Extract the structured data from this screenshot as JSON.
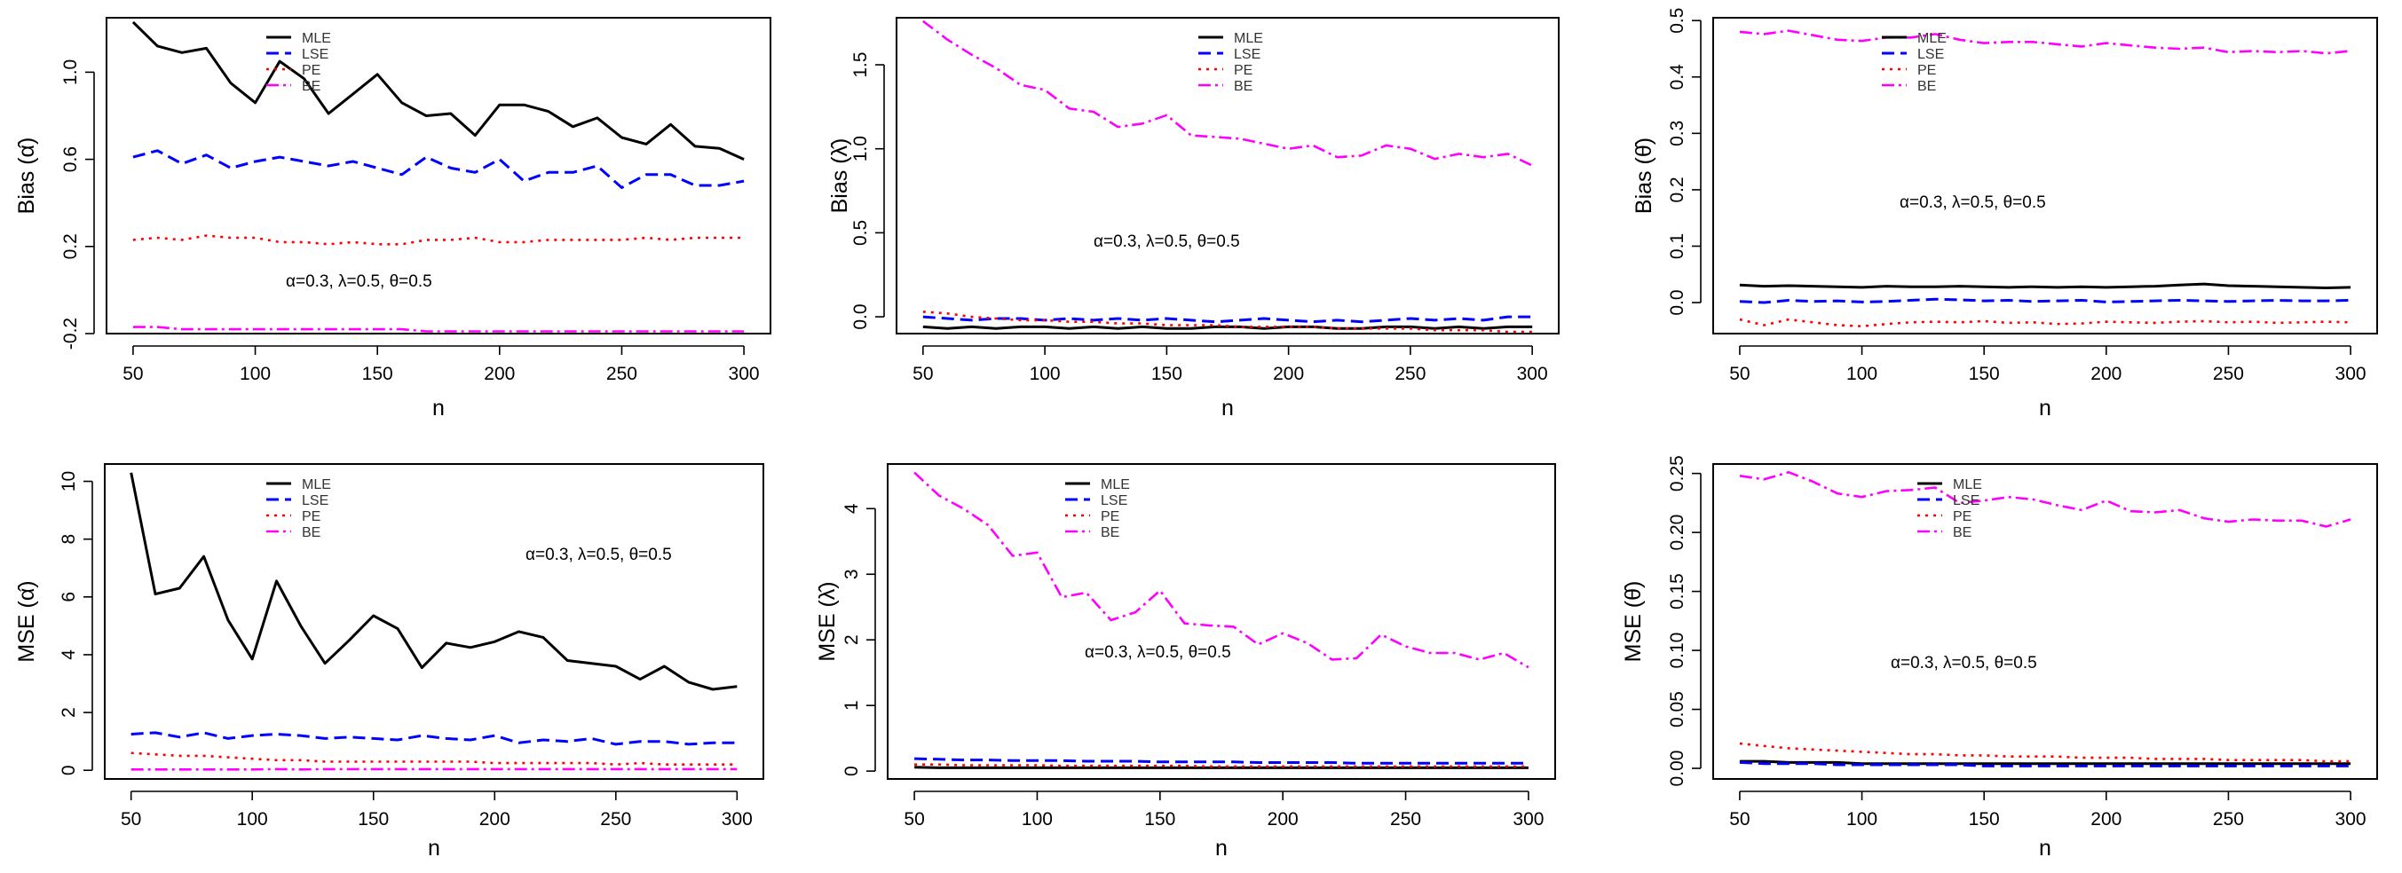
{
  "colors": {
    "MLE": "#000000",
    "LSE": "#0000ff",
    "PE": "#ff0000",
    "BE": "#ff00ff"
  },
  "chart_data": [
    {
      "type": "line",
      "id": "bias-alpha",
      "xlabel": "n",
      "ylabel": "Bias (α̂)",
      "xlim": [
        50,
        300
      ],
      "ylim": [
        -0.2,
        1.25
      ],
      "xticks": [
        50,
        100,
        150,
        200,
        250,
        300
      ],
      "yticks": [
        -0.2,
        0.2,
        0.6,
        1.0
      ],
      "yticklabels": [
        "-0.2",
        "0.2",
        "0.6",
        "1.0"
      ],
      "legend": [
        "MLE",
        "LSE",
        "PE",
        "BE"
      ],
      "annotation": "α=0.3, λ=0.5, θ=0.5",
      "x": [
        50,
        60,
        70,
        80,
        90,
        100,
        110,
        120,
        130,
        140,
        150,
        160,
        170,
        180,
        190,
        200,
        210,
        220,
        230,
        240,
        250,
        260,
        270,
        280,
        290,
        300
      ],
      "series": [
        {
          "name": "MLE",
          "values": [
            1.23,
            1.12,
            1.09,
            1.11,
            0.95,
            0.86,
            1.05,
            0.97,
            0.81,
            0.9,
            0.99,
            0.86,
            0.8,
            0.81,
            0.71,
            0.85,
            0.85,
            0.82,
            0.75,
            0.79,
            0.7,
            0.67,
            0.76,
            0.66,
            0.65,
            0.6
          ]
        },
        {
          "name": "LSE",
          "values": [
            0.61,
            0.64,
            0.58,
            0.62,
            0.56,
            0.59,
            0.61,
            0.59,
            0.57,
            0.59,
            0.56,
            0.53,
            0.61,
            0.56,
            0.54,
            0.6,
            0.5,
            0.54,
            0.54,
            0.57,
            0.47,
            0.53,
            0.53,
            0.48,
            0.48,
            0.5
          ]
        },
        {
          "name": "PE",
          "values": [
            0.23,
            0.24,
            0.23,
            0.25,
            0.24,
            0.24,
            0.22,
            0.22,
            0.21,
            0.22,
            0.21,
            0.21,
            0.23,
            0.23,
            0.24,
            0.22,
            0.22,
            0.23,
            0.23,
            0.23,
            0.23,
            0.24,
            0.23,
            0.24,
            0.24,
            0.24
          ]
        },
        {
          "name": "BE",
          "values": [
            -0.17,
            -0.17,
            -0.18,
            -0.18,
            -0.18,
            -0.18,
            -0.18,
            -0.18,
            -0.18,
            -0.18,
            -0.18,
            -0.18,
            -0.19,
            -0.19,
            -0.19,
            -0.19,
            -0.19,
            -0.19,
            -0.19,
            -0.19,
            -0.19,
            -0.19,
            -0.19,
            -0.19,
            -0.19,
            -0.19
          ]
        }
      ]
    },
    {
      "type": "line",
      "id": "bias-lambda",
      "xlabel": "n",
      "ylabel": "Bias (λ̂)",
      "xlim": [
        50,
        300
      ],
      "ylim": [
        -0.1,
        1.78
      ],
      "xticks": [
        50,
        100,
        150,
        200,
        250,
        300
      ],
      "yticks": [
        0.0,
        0.5,
        1.0,
        1.5
      ],
      "yticklabels": [
        "0.0",
        "0.5",
        "1.0",
        "1.5"
      ],
      "legend": [
        "MLE",
        "LSE",
        "PE",
        "BE"
      ],
      "annotation": "α=0.3, λ=0.5, θ=0.5",
      "x": [
        50,
        60,
        70,
        80,
        90,
        100,
        110,
        120,
        130,
        140,
        150,
        160,
        170,
        180,
        190,
        200,
        210,
        220,
        230,
        240,
        250,
        260,
        270,
        280,
        290,
        300
      ],
      "series": [
        {
          "name": "MLE",
          "values": [
            -0.06,
            -0.07,
            -0.06,
            -0.07,
            -0.06,
            -0.06,
            -0.07,
            -0.06,
            -0.07,
            -0.06,
            -0.07,
            -0.07,
            -0.06,
            -0.06,
            -0.07,
            -0.06,
            -0.06,
            -0.07,
            -0.07,
            -0.06,
            -0.06,
            -0.07,
            -0.06,
            -0.07,
            -0.06,
            -0.06
          ]
        },
        {
          "name": "LSE",
          "values": [
            0.0,
            -0.01,
            -0.02,
            -0.01,
            -0.01,
            -0.02,
            -0.01,
            -0.02,
            -0.01,
            -0.02,
            -0.01,
            -0.02,
            -0.03,
            -0.02,
            -0.01,
            -0.02,
            -0.03,
            -0.02,
            -0.03,
            -0.02,
            -0.01,
            -0.02,
            -0.01,
            -0.02,
            0.0,
            0.0
          ]
        },
        {
          "name": "PE",
          "values": [
            0.03,
            0.02,
            0.0,
            -0.01,
            -0.02,
            -0.02,
            -0.03,
            -0.03,
            -0.04,
            -0.04,
            -0.05,
            -0.05,
            -0.05,
            -0.06,
            -0.06,
            -0.06,
            -0.06,
            -0.07,
            -0.07,
            -0.07,
            -0.07,
            -0.08,
            -0.08,
            -0.08,
            -0.09,
            -0.09
          ]
        },
        {
          "name": "BE",
          "values": [
            1.76,
            1.65,
            1.56,
            1.48,
            1.38,
            1.35,
            1.24,
            1.22,
            1.13,
            1.15,
            1.2,
            1.08,
            1.07,
            1.06,
            1.03,
            1.0,
            1.02,
            0.95,
            0.96,
            1.02,
            1.0,
            0.94,
            0.97,
            0.95,
            0.97,
            0.9
          ]
        }
      ]
    },
    {
      "type": "line",
      "id": "bias-theta",
      "xlabel": "n",
      "ylabel": "Bias (θ̂)",
      "xlim": [
        50,
        300
      ],
      "ylim": [
        -0.055,
        0.505
      ],
      "xticks": [
        50,
        100,
        150,
        200,
        250,
        300
      ],
      "yticks": [
        0.0,
        0.1,
        0.2,
        0.3,
        0.4,
        0.5
      ],
      "yticklabels": [
        "0.0",
        "0.1",
        "0.2",
        "0.3",
        "0.4",
        "0.5"
      ],
      "legend": [
        "MLE",
        "LSE",
        "PE",
        "BE"
      ],
      "annotation": "α=0.3, λ=0.5, θ=0.5",
      "x": [
        50,
        60,
        70,
        80,
        90,
        100,
        110,
        120,
        130,
        140,
        150,
        160,
        170,
        180,
        190,
        200,
        210,
        220,
        230,
        240,
        250,
        260,
        270,
        280,
        290,
        300
      ],
      "series": [
        {
          "name": "MLE",
          "values": [
            0.031,
            0.029,
            0.03,
            0.029,
            0.028,
            0.027,
            0.029,
            0.028,
            0.028,
            0.029,
            0.028,
            0.027,
            0.028,
            0.027,
            0.028,
            0.027,
            0.028,
            0.029,
            0.031,
            0.033,
            0.03,
            0.029,
            0.028,
            0.027,
            0.026,
            0.027
          ]
        },
        {
          "name": "LSE",
          "values": [
            0.002,
            0.0,
            0.004,
            0.002,
            0.003,
            0.001,
            0.002,
            0.004,
            0.006,
            0.005,
            0.003,
            0.004,
            0.002,
            0.003,
            0.004,
            0.001,
            0.002,
            0.003,
            0.004,
            0.003,
            0.002,
            0.003,
            0.004,
            0.003,
            0.003,
            0.004
          ]
        },
        {
          "name": "PE",
          "values": [
            -0.03,
            -0.04,
            -0.03,
            -0.035,
            -0.04,
            -0.042,
            -0.038,
            -0.035,
            -0.034,
            -0.035,
            -0.033,
            -0.036,
            -0.035,
            -0.038,
            -0.037,
            -0.034,
            -0.035,
            -0.036,
            -0.034,
            -0.033,
            -0.035,
            -0.034,
            -0.036,
            -0.035,
            -0.034,
            -0.035
          ]
        },
        {
          "name": "BE",
          "values": [
            0.48,
            0.476,
            0.482,
            0.474,
            0.466,
            0.464,
            0.47,
            0.47,
            0.476,
            0.466,
            0.46,
            0.462,
            0.462,
            0.458,
            0.454,
            0.46,
            0.456,
            0.452,
            0.45,
            0.452,
            0.444,
            0.446,
            0.444,
            0.446,
            0.442,
            0.446
          ]
        }
      ]
    },
    {
      "type": "line",
      "id": "mse-alpha",
      "xlabel": "n",
      "ylabel": "MSE (α̂)",
      "xlim": [
        50,
        300
      ],
      "ylim": [
        -0.3,
        10.6
      ],
      "xticks": [
        50,
        100,
        150,
        200,
        250,
        300
      ],
      "yticks": [
        0,
        2,
        4,
        6,
        8,
        10
      ],
      "yticklabels": [
        "0",
        "2",
        "4",
        "6",
        "8",
        "10"
      ],
      "legend": [
        "MLE",
        "LSE",
        "PE",
        "BE"
      ],
      "annotation": "α=0.3, λ=0.5, θ=0.5",
      "x": [
        50,
        60,
        70,
        80,
        90,
        100,
        110,
        120,
        130,
        140,
        150,
        160,
        170,
        180,
        190,
        200,
        210,
        220,
        230,
        240,
        250,
        260,
        270,
        280,
        290,
        300
      ],
      "series": [
        {
          "name": "MLE",
          "values": [
            10.3,
            6.1,
            6.3,
            7.4,
            5.2,
            3.85,
            6.55,
            5.0,
            3.7,
            4.5,
            5.35,
            4.9,
            3.55,
            4.4,
            4.25,
            4.45,
            4.8,
            4.6,
            3.8,
            3.7,
            3.6,
            3.15,
            3.6,
            3.05,
            2.8,
            2.9
          ]
        },
        {
          "name": "LSE",
          "values": [
            1.25,
            1.3,
            1.15,
            1.3,
            1.1,
            1.2,
            1.25,
            1.2,
            1.1,
            1.15,
            1.1,
            1.05,
            1.2,
            1.1,
            1.05,
            1.2,
            0.95,
            1.05,
            1.0,
            1.1,
            0.9,
            1.0,
            1.0,
            0.9,
            0.95,
            0.95
          ]
        },
        {
          "name": "PE",
          "values": [
            0.6,
            0.55,
            0.5,
            0.5,
            0.45,
            0.4,
            0.35,
            0.35,
            0.3,
            0.3,
            0.3,
            0.3,
            0.3,
            0.3,
            0.3,
            0.25,
            0.25,
            0.25,
            0.25,
            0.25,
            0.2,
            0.25,
            0.2,
            0.2,
            0.2,
            0.2
          ]
        },
        {
          "name": "BE",
          "values": [
            0.03,
            0.03,
            0.03,
            0.03,
            0.03,
            0.03,
            0.04,
            0.03,
            0.04,
            0.04,
            0.04,
            0.04,
            0.04,
            0.04,
            0.04,
            0.04,
            0.04,
            0.04,
            0.04,
            0.04,
            0.04,
            0.04,
            0.04,
            0.04,
            0.04,
            0.04
          ]
        }
      ]
    },
    {
      "type": "line",
      "id": "mse-lambda",
      "xlabel": "n",
      "ylabel": "MSE (λ̂)",
      "xlim": [
        50,
        300
      ],
      "ylim": [
        -0.12,
        4.68
      ],
      "xticks": [
        50,
        100,
        150,
        200,
        250,
        300
      ],
      "yticks": [
        0,
        1,
        2,
        3,
        4
      ],
      "yticklabels": [
        "0",
        "1",
        "2",
        "3",
        "4"
      ],
      "legend": [
        "MLE",
        "LSE",
        "PE",
        "BE"
      ],
      "annotation": "α=0.3, λ=0.5, θ=0.5",
      "x": [
        50,
        60,
        70,
        80,
        90,
        100,
        110,
        120,
        130,
        140,
        150,
        160,
        170,
        180,
        190,
        200,
        210,
        220,
        230,
        240,
        250,
        260,
        270,
        280,
        290,
        300
      ],
      "series": [
        {
          "name": "MLE",
          "values": [
            0.06,
            0.05,
            0.05,
            0.05,
            0.05,
            0.05,
            0.05,
            0.05,
            0.05,
            0.05,
            0.05,
            0.05,
            0.05,
            0.05,
            0.05,
            0.05,
            0.05,
            0.05,
            0.05,
            0.05,
            0.05,
            0.05,
            0.05,
            0.05,
            0.05,
            0.05
          ]
        },
        {
          "name": "LSE",
          "values": [
            0.19,
            0.18,
            0.17,
            0.17,
            0.16,
            0.16,
            0.16,
            0.15,
            0.15,
            0.15,
            0.14,
            0.14,
            0.14,
            0.14,
            0.13,
            0.13,
            0.13,
            0.13,
            0.12,
            0.12,
            0.12,
            0.12,
            0.12,
            0.12,
            0.12,
            0.12
          ]
        },
        {
          "name": "PE",
          "values": [
            0.1,
            0.1,
            0.09,
            0.09,
            0.09,
            0.09,
            0.08,
            0.08,
            0.08,
            0.08,
            0.08,
            0.08,
            0.07,
            0.07,
            0.07,
            0.07,
            0.07,
            0.07,
            0.07,
            0.07,
            0.07,
            0.07,
            0.07,
            0.07,
            0.07,
            0.07
          ]
        },
        {
          "name": "BE",
          "values": [
            4.55,
            4.2,
            4.0,
            3.75,
            3.28,
            3.33,
            2.65,
            2.72,
            2.3,
            2.42,
            2.75,
            2.25,
            2.22,
            2.2,
            1.93,
            2.1,
            1.95,
            1.7,
            1.72,
            2.08,
            1.9,
            1.8,
            1.8,
            1.7,
            1.8,
            1.58
          ]
        }
      ]
    },
    {
      "type": "line",
      "id": "mse-theta",
      "xlabel": "n",
      "ylabel": "MSE (θ̂)",
      "xlim": [
        50,
        300
      ],
      "ylim": [
        -0.009,
        0.258
      ],
      "xticks": [
        50,
        100,
        150,
        200,
        250,
        300
      ],
      "yticks": [
        0.0,
        0.05,
        0.1,
        0.15,
        0.2,
        0.25
      ],
      "yticklabels": [
        "0.00",
        "0.05",
        "0.10",
        "0.15",
        "0.20",
        "0.25"
      ],
      "legend": [
        "MLE",
        "LSE",
        "PE",
        "BE"
      ],
      "annotation": "α=0.3, λ=0.5, θ=0.5",
      "x": [
        50,
        60,
        70,
        80,
        90,
        100,
        110,
        120,
        130,
        140,
        150,
        160,
        170,
        180,
        190,
        200,
        210,
        220,
        230,
        240,
        250,
        260,
        270,
        280,
        290,
        300
      ],
      "series": [
        {
          "name": "MLE",
          "values": [
            0.006,
            0.006,
            0.005,
            0.005,
            0.005,
            0.004,
            0.004,
            0.004,
            0.004,
            0.004,
            0.004,
            0.004,
            0.004,
            0.004,
            0.004,
            0.004,
            0.004,
            0.004,
            0.004,
            0.004,
            0.004,
            0.004,
            0.004,
            0.004,
            0.004,
            0.004
          ]
        },
        {
          "name": "LSE",
          "values": [
            0.005,
            0.004,
            0.004,
            0.004,
            0.003,
            0.003,
            0.003,
            0.003,
            0.003,
            0.003,
            0.002,
            0.002,
            0.002,
            0.002,
            0.002,
            0.002,
            0.002,
            0.002,
            0.002,
            0.002,
            0.002,
            0.002,
            0.002,
            0.002,
            0.002,
            0.002
          ]
        },
        {
          "name": "PE",
          "values": [
            0.021,
            0.019,
            0.017,
            0.016,
            0.015,
            0.014,
            0.013,
            0.012,
            0.012,
            0.011,
            0.011,
            0.01,
            0.01,
            0.01,
            0.009,
            0.009,
            0.009,
            0.008,
            0.008,
            0.008,
            0.007,
            0.007,
            0.007,
            0.007,
            0.006,
            0.006
          ]
        },
        {
          "name": "BE",
          "values": [
            0.248,
            0.245,
            0.251,
            0.243,
            0.233,
            0.23,
            0.235,
            0.236,
            0.238,
            0.225,
            0.227,
            0.23,
            0.228,
            0.223,
            0.219,
            0.227,
            0.218,
            0.217,
            0.219,
            0.212,
            0.209,
            0.211,
            0.21,
            0.21,
            0.205,
            0.211
          ]
        }
      ]
    }
  ]
}
